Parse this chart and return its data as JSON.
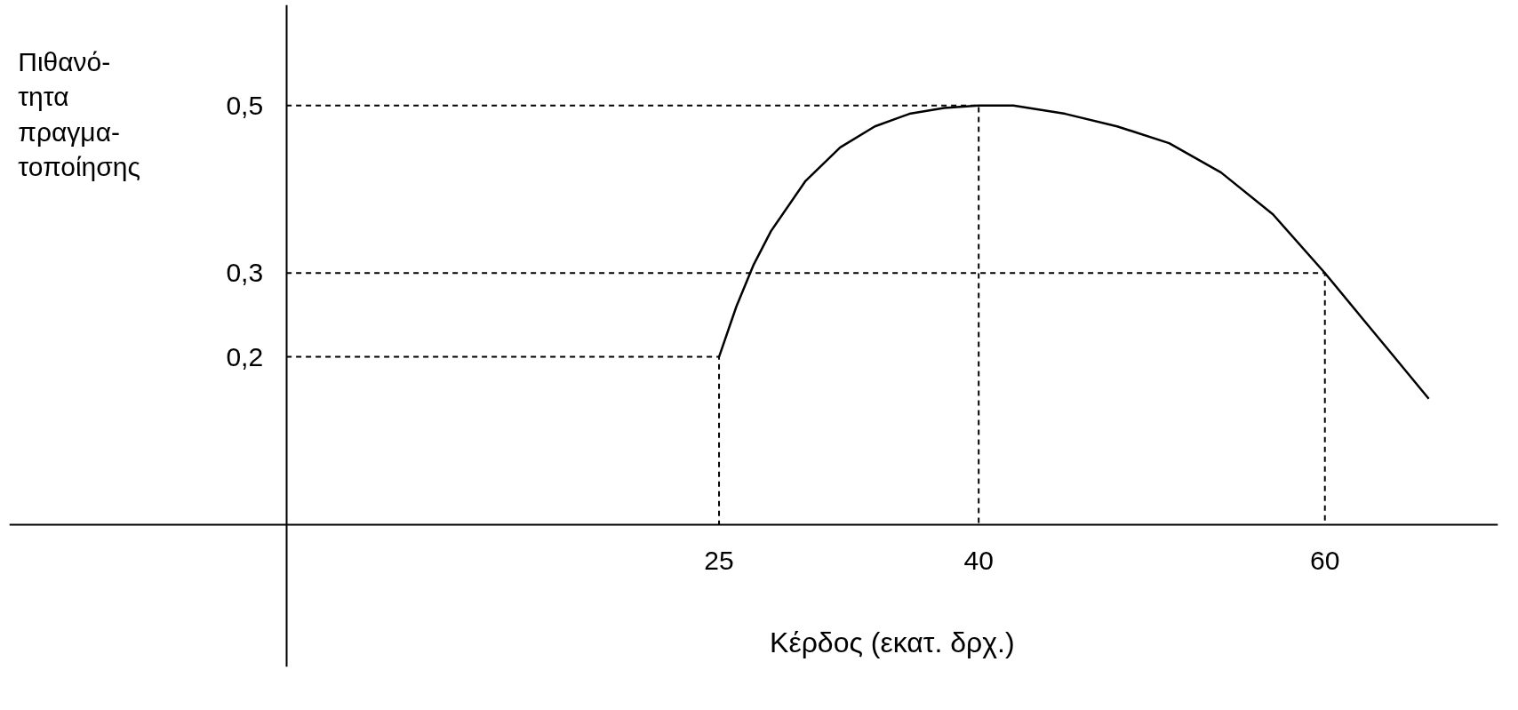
{
  "chart_data": {
    "type": "line",
    "xlabel": "Κέρδος (εκατ. δρχ.)",
    "ylabel": "Πιθανό-\nτητα\nπραγμα-\nτοποίησης",
    "xlim": [
      -16,
      70
    ],
    "ylim": [
      -0.17,
      0.62
    ],
    "xticks": [
      25,
      40,
      60
    ],
    "yticks": [
      {
        "value": 0.2,
        "label": "0,2"
      },
      {
        "value": 0.3,
        "label": "0,3"
      },
      {
        "value": 0.5,
        "label": "0,5"
      }
    ],
    "grid": false,
    "series": [
      {
        "color": "#000000",
        "line_style": "solid",
        "x": [
          25,
          26,
          27,
          28,
          30,
          32,
          34,
          36,
          38,
          40,
          42,
          45,
          48,
          51,
          54,
          57,
          60,
          62,
          64,
          66
        ],
        "values": [
          0.2,
          0.26,
          0.31,
          0.35,
          0.41,
          0.45,
          0.475,
          0.49,
          0.497,
          0.5,
          0.5,
          0.49,
          0.475,
          0.455,
          0.42,
          0.37,
          0.3,
          0.25,
          0.2,
          0.15
        ]
      },
      {
        "color": "#000000",
        "line_style": "dashed",
        "x": [
          0,
          25,
          25
        ],
        "values": [
          0.2,
          0.2,
          0
        ]
      },
      {
        "color": "#000000",
        "line_style": "dashed",
        "x": [
          0,
          40,
          40
        ],
        "values": [
          0.5,
          0.5,
          0
        ]
      },
      {
        "color": "#000000",
        "line_style": "dashed",
        "x": [
          0,
          60,
          60
        ],
        "values": [
          0.3,
          0.3,
          0
        ]
      }
    ]
  }
}
